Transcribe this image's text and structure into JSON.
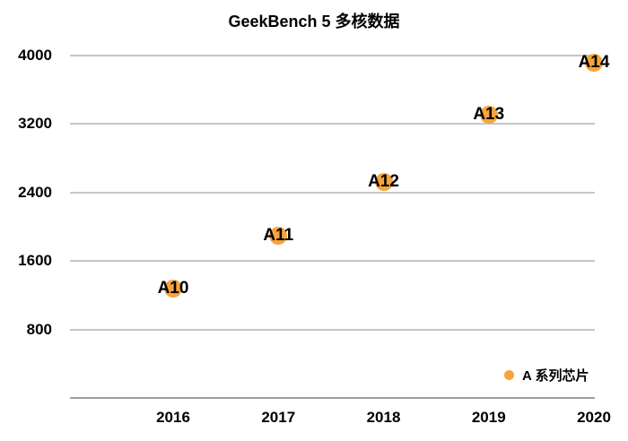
{
  "colors": {
    "accent_orange": "#F7A43C",
    "gridline_gray": "#C7C7C7",
    "axis_line_gray": "#9E9E9E",
    "text_black": "#000000",
    "background": "#FFFFFF"
  },
  "chart_data": {
    "type": "scatter",
    "title": "GeekBench 5 多核数据",
    "categories": [
      "2016",
      "2017",
      "2018",
      "2019",
      "2020"
    ],
    "series": [
      {
        "name": "A 系列芯片",
        "marker_color": "#F7A43C",
        "points": [
          {
            "label": "A10",
            "x": "2016",
            "y": 1280
          },
          {
            "label": "A11",
            "x": "2017",
            "y": 1900
          },
          {
            "label": "A12",
            "x": "2018",
            "y": 2520
          },
          {
            "label": "A13",
            "x": "2019",
            "y": 3310
          },
          {
            "label": "A14",
            "x": "2020",
            "y": 3920
          }
        ]
      }
    ],
    "xlabel": "",
    "ylabel": "",
    "ylim": [
      0,
      4000
    ],
    "y_ticks": [
      4000,
      3200,
      2400,
      1600,
      800
    ],
    "grid": true,
    "legend_position": "bottom-right"
  }
}
